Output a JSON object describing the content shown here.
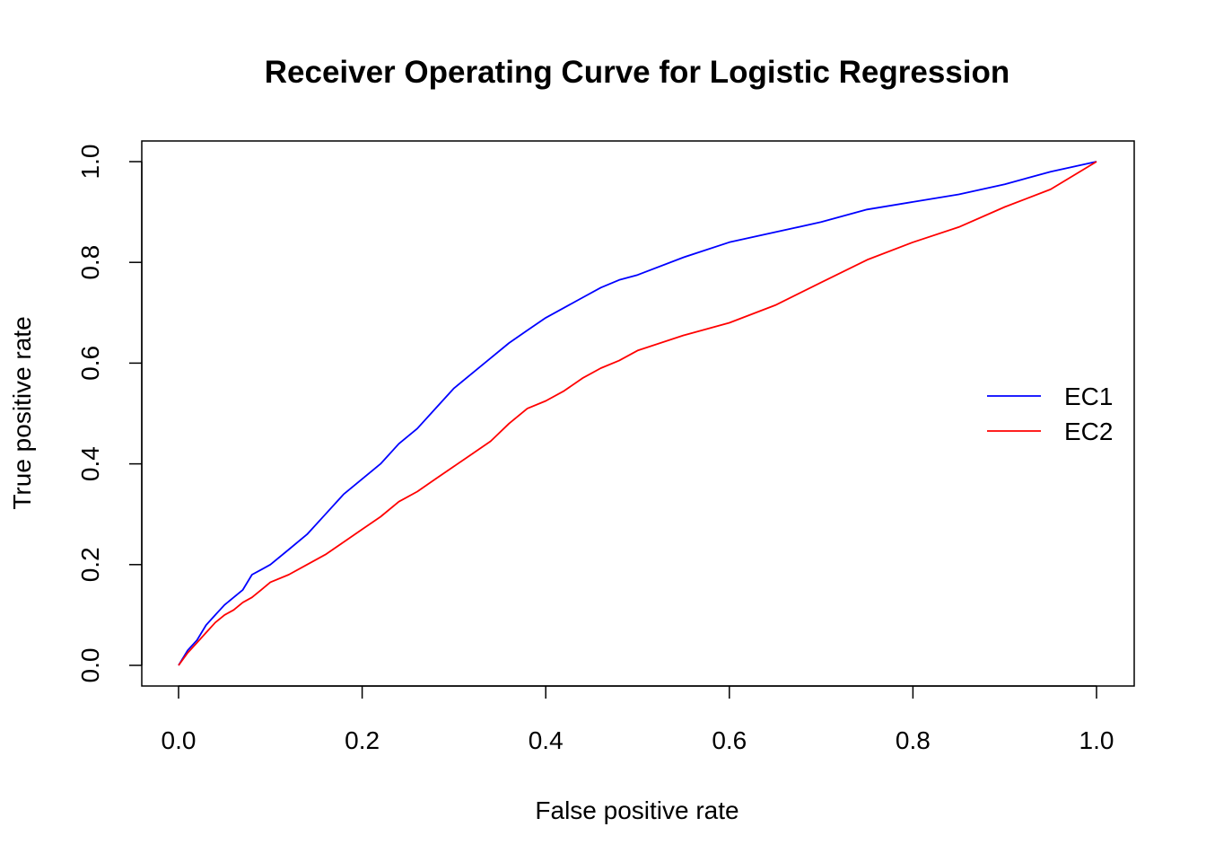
{
  "chart_data": {
    "type": "line",
    "title": "Receiver Operating Curve for Logistic Regression",
    "xlabel": "False positive rate",
    "ylabel": "True positive rate",
    "xlim": [
      0,
      1
    ],
    "ylim": [
      0,
      1
    ],
    "xticks": [
      "0.0",
      "0.2",
      "0.4",
      "0.6",
      "0.8",
      "1.0"
    ],
    "yticks": [
      "0.0",
      "0.2",
      "0.4",
      "0.6",
      "0.8",
      "1.0"
    ],
    "grid": false,
    "legend_position": "right",
    "series": [
      {
        "name": "EC1",
        "color": "#0000ff",
        "x": [
          0,
          0.01,
          0.02,
          0.03,
          0.04,
          0.05,
          0.06,
          0.07,
          0.08,
          0.09,
          0.1,
          0.12,
          0.14,
          0.16,
          0.18,
          0.2,
          0.22,
          0.24,
          0.26,
          0.28,
          0.3,
          0.32,
          0.34,
          0.36,
          0.38,
          0.4,
          0.42,
          0.44,
          0.46,
          0.48,
          0.5,
          0.55,
          0.6,
          0.65,
          0.7,
          0.75,
          0.8,
          0.85,
          0.9,
          0.95,
          1.0
        ],
        "y": [
          0,
          0.03,
          0.05,
          0.08,
          0.1,
          0.12,
          0.135,
          0.15,
          0.18,
          0.19,
          0.2,
          0.23,
          0.26,
          0.3,
          0.34,
          0.37,
          0.4,
          0.44,
          0.47,
          0.51,
          0.55,
          0.58,
          0.61,
          0.64,
          0.665,
          0.69,
          0.71,
          0.73,
          0.75,
          0.765,
          0.775,
          0.81,
          0.84,
          0.86,
          0.88,
          0.905,
          0.92,
          0.935,
          0.955,
          0.98,
          1.0
        ]
      },
      {
        "name": "EC2",
        "color": "#ff0000",
        "x": [
          0,
          0.01,
          0.02,
          0.03,
          0.04,
          0.05,
          0.06,
          0.07,
          0.08,
          0.09,
          0.1,
          0.12,
          0.14,
          0.16,
          0.18,
          0.2,
          0.22,
          0.24,
          0.26,
          0.28,
          0.3,
          0.32,
          0.34,
          0.36,
          0.38,
          0.4,
          0.42,
          0.44,
          0.46,
          0.48,
          0.5,
          0.55,
          0.6,
          0.65,
          0.7,
          0.75,
          0.8,
          0.85,
          0.9,
          0.95,
          1.0
        ],
        "y": [
          0,
          0.025,
          0.045,
          0.065,
          0.085,
          0.1,
          0.11,
          0.125,
          0.135,
          0.15,
          0.165,
          0.18,
          0.2,
          0.22,
          0.245,
          0.27,
          0.295,
          0.325,
          0.345,
          0.37,
          0.395,
          0.42,
          0.445,
          0.48,
          0.51,
          0.525,
          0.545,
          0.57,
          0.59,
          0.605,
          0.625,
          0.655,
          0.68,
          0.715,
          0.76,
          0.805,
          0.84,
          0.87,
          0.91,
          0.945,
          1.0
        ]
      }
    ]
  }
}
